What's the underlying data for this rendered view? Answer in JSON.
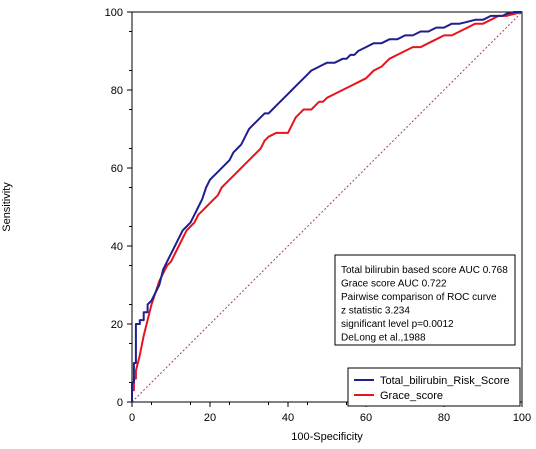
{
  "chart_data": {
    "type": "line",
    "title": "",
    "xlabel": "100-Specificity",
    "ylabel": "Sensitivity",
    "xlim": [
      0,
      100
    ],
    "ylim": [
      0,
      100
    ],
    "xticks": [
      0,
      20,
      40,
      60,
      80,
      100
    ],
    "yticks": [
      0,
      20,
      40,
      60,
      80,
      100
    ],
    "grid": false,
    "legend_position": "bottom-right",
    "annotation": [
      "Total bilirubin based score AUC 0.768",
      "Grace score AUC 0.722",
      "Pairwise comparison of ROC curve",
      "z statistic 3.234",
      "significant level p=0.0012",
      "DeLong et al.,1988"
    ],
    "series": [
      {
        "name": "Total_bilirubin_Risk_Score",
        "color": "#1f1f8f",
        "x": [
          0,
          0,
          0.5,
          0.5,
          1,
          1,
          2,
          2,
          3,
          3,
          4,
          4,
          5,
          6,
          7,
          8,
          9,
          10,
          11,
          12,
          13,
          14,
          15,
          16,
          17,
          18,
          19,
          20,
          22,
          24,
          25,
          26,
          27,
          28,
          29,
          30,
          31,
          32,
          33,
          34,
          35,
          36,
          37,
          38,
          39,
          40,
          41,
          42,
          43,
          44,
          45,
          46,
          47,
          48,
          49,
          50,
          52,
          54,
          55,
          56,
          57,
          58,
          60,
          62,
          64,
          66,
          68,
          70,
          72,
          74,
          76,
          78,
          80,
          82,
          84,
          86,
          88,
          90,
          92,
          94,
          95,
          96,
          98,
          100
        ],
        "y": [
          0,
          5,
          5,
          10,
          10,
          20,
          20,
          21,
          21,
          23,
          23,
          25,
          26,
          28,
          30,
          34,
          36,
          38,
          40,
          42,
          44,
          45,
          46,
          48,
          50,
          52,
          55,
          57,
          59,
          61,
          62,
          64,
          65,
          66,
          68,
          70,
          71,
          72,
          73,
          74,
          74,
          75,
          76,
          77,
          78,
          79,
          80,
          81,
          82,
          83,
          84,
          85,
          85.5,
          86,
          86.5,
          87,
          87,
          88,
          88,
          89,
          89,
          90,
          91,
          92,
          92,
          93,
          93,
          94,
          94,
          95,
          95,
          96,
          96,
          97,
          97,
          97.5,
          98,
          98,
          99,
          99,
          99,
          99.5,
          100,
          100
        ]
      },
      {
        "name": "Grace_score",
        "color": "#e8141c",
        "x": [
          0,
          0,
          0.5,
          0.5,
          1,
          1,
          2,
          3,
          4,
          5,
          6,
          7,
          8,
          9,
          10,
          11,
          12,
          13,
          14,
          15,
          16,
          17,
          18,
          19,
          20,
          21,
          22,
          23,
          24,
          25,
          26,
          27,
          28,
          29,
          30,
          31,
          32,
          33,
          34,
          35,
          36,
          37,
          38,
          39,
          40,
          41,
          42,
          43,
          44,
          45,
          46,
          47,
          48,
          49,
          50,
          52,
          54,
          56,
          58,
          60,
          62,
          64,
          66,
          68,
          70,
          72,
          74,
          76,
          78,
          80,
          82,
          84,
          86,
          88,
          90,
          92,
          94,
          96,
          98,
          100
        ],
        "y": [
          0,
          3,
          3,
          6,
          6,
          8,
          12,
          17,
          21,
          25,
          28,
          31,
          33,
          35,
          36,
          38,
          40,
          42,
          44,
          45,
          46,
          48,
          49,
          50,
          51,
          52,
          53,
          55,
          56,
          57,
          58,
          59,
          60,
          61,
          62,
          63,
          64,
          65,
          67,
          68,
          68.5,
          69,
          69,
          69,
          69,
          71,
          73,
          74,
          75,
          75,
          75,
          76,
          77,
          77,
          78,
          79,
          80,
          81,
          82,
          83,
          85,
          86,
          88,
          89,
          90,
          91,
          91,
          92,
          93,
          94,
          94,
          95,
          96,
          97,
          97,
          98,
          99,
          99,
          99.5,
          100
        ]
      },
      {
        "name": "",
        "color": "#b04040",
        "x": [
          0,
          100
        ],
        "y": [
          0,
          100
        ]
      }
    ]
  }
}
